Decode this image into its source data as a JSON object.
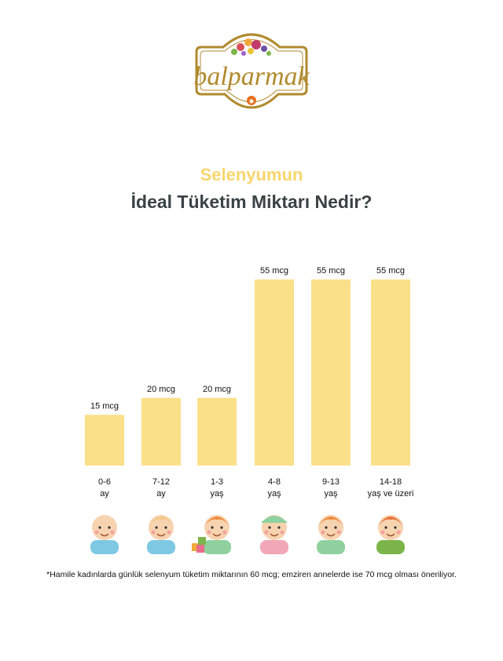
{
  "brand": {
    "logo_text": "balparmak"
  },
  "heading": {
    "line1": "Selenyumun",
    "line2": "İdeal Tüketim Miktarı Nedir?"
  },
  "colors": {
    "bar": "#fbe08a",
    "title_accent": "#f8d66d",
    "title_dark": "#3a4246",
    "logo_gold": "#b08a2e"
  },
  "chart_data": {
    "type": "bar",
    "unit": "mcg",
    "categories": [
      {
        "line1": "0-6",
        "line2": "ay"
      },
      {
        "line1": "7-12",
        "line2": "ay"
      },
      {
        "line1": "1-3",
        "line2": "yaş"
      },
      {
        "line1": "4-8",
        "line2": "yaş"
      },
      {
        "line1": "9-13",
        "line2": "yaş"
      },
      {
        "line1": "14-18",
        "line2": "yaş ve üzeri"
      }
    ],
    "values": [
      15,
      20,
      20,
      55,
      55,
      55
    ],
    "data_labels": [
      "15 mcg",
      "20 mcg",
      "20 mcg",
      "55 mcg",
      "55 mcg",
      "55 mcg"
    ],
    "icons": [
      "baby-lying-icon",
      "baby-crawling-icon",
      "toddler-with-blocks-icon",
      "child-with-hat-icon",
      "boy-icon",
      "teen-icon"
    ],
    "ylim": [
      0,
      60
    ]
  },
  "footnote": "*Hamile kadınlarda günlük selenyum tüketim miktarının 60 mcg; emziren annelerde ise 70 mcg olması öneriliyor."
}
